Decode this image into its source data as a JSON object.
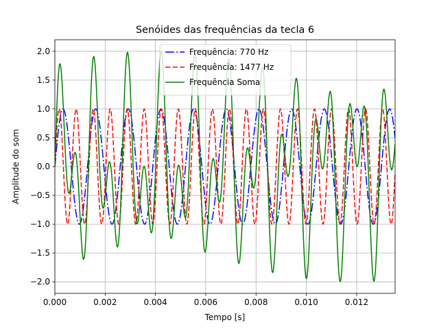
{
  "chart_data": {
    "type": "line",
    "title": "Senóides das frequências da tecla 6",
    "xlabel": "Tempo [s]",
    "ylabel": "Amplitude do som",
    "xlim": [
      0,
      0.01353
    ],
    "ylim": [
      -2.2,
      2.2
    ],
    "x_ticks": [
      0,
      0.002,
      0.004,
      0.006,
      0.008,
      0.01,
      0.012
    ],
    "x_tick_labels": [
      "0.000",
      "0.002",
      "0.004",
      "0.006",
      "0.008",
      "0.010",
      "0.012"
    ],
    "y_ticks": [
      -2.0,
      -1.5,
      -1.0,
      -0.5,
      0.0,
      0.5,
      1.0,
      1.5,
      2.0
    ],
    "y_tick_labels": [
      "−2.0",
      "−1.5",
      "−1.0",
      "−0.5",
      "0.0",
      "0.5",
      "1.0",
      "1.5",
      "2.0"
    ],
    "grid": true,
    "legend_position": "top-center",
    "series": [
      {
        "name": "Frequência: 770 Hz",
        "frequency_hz": 770,
        "amplitude": 1,
        "color": "#0000ff",
        "dash": "dashdot"
      },
      {
        "name": "Frequência: 1477 Hz",
        "frequency_hz": 1477,
        "amplitude": 1,
        "color": "#ff0000",
        "dash": "dashed"
      },
      {
        "name": "Frequência Soma",
        "components_hz": [
          770,
          1477
        ],
        "color": "#008000",
        "dash": "solid"
      }
    ]
  }
}
